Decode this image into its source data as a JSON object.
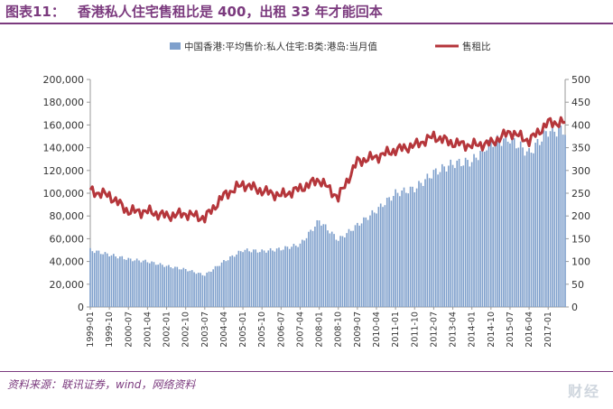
{
  "header": {
    "figure_label": "图表11：",
    "title": "香港私人住宅售租比是 400，出租 33 年才能回本"
  },
  "footer": {
    "source": "资料来源：联讯证券，wind，网络资料"
  },
  "colors": {
    "accent": "#7b3a7e",
    "bars": "#7fa0cc",
    "line": "#b5363b"
  },
  "chart_data": {
    "type": "bar",
    "x_label_period": "every 9 months",
    "x": [
      "1999-01",
      "1999-10",
      "2000-07",
      "2001-04",
      "2002-01",
      "2002-10",
      "2003-07",
      "2004-04",
      "2005-01",
      "2005-10",
      "2006-07",
      "2007-04",
      "2008-01",
      "2008-10",
      "2009-07",
      "2010-04",
      "2011-01",
      "2011-10",
      "2012-07",
      "2013-04",
      "2014-01",
      "2014-10",
      "2015-07",
      "2016-04",
      "2017-01"
    ],
    "series": [
      {
        "name": "中国香港:平均售价:私人住宅:B类:港岛:当月值",
        "type": "bar",
        "axis": "left",
        "points": [
          [
            "1999-01",
            50000
          ],
          [
            "1999-10",
            46000
          ],
          [
            "2000-07",
            42000
          ],
          [
            "2001-04",
            40000
          ],
          [
            "2002-01",
            36000
          ],
          [
            "2002-10",
            33000
          ],
          [
            "2003-07",
            28000
          ],
          [
            "2004-04",
            40000
          ],
          [
            "2005-01",
            50000
          ],
          [
            "2005-10",
            49000
          ],
          [
            "2006-07",
            51000
          ],
          [
            "2007-04",
            55000
          ],
          [
            "2008-01",
            76000
          ],
          [
            "2008-10",
            59000
          ],
          [
            "2009-07",
            72000
          ],
          [
            "2010-04",
            85000
          ],
          [
            "2011-01",
            100000
          ],
          [
            "2011-10",
            104000
          ],
          [
            "2012-07",
            118000
          ],
          [
            "2013-04",
            126000
          ],
          [
            "2014-01",
            128000
          ],
          [
            "2014-10",
            145000
          ],
          [
            "2015-07",
            148000
          ],
          [
            "2016-04",
            135000
          ],
          [
            "2017-01",
            155000
          ]
        ]
      },
      {
        "name": "售租比",
        "type": "line",
        "axis": "right",
        "points": [
          [
            "1999-01",
            255
          ],
          [
            "1999-10",
            245
          ],
          [
            "2000-07",
            210
          ],
          [
            "2001-04",
            210
          ],
          [
            "2002-01",
            200
          ],
          [
            "2002-10",
            205
          ],
          [
            "2003-07",
            195
          ],
          [
            "2004-04",
            245
          ],
          [
            "2005-01",
            270
          ],
          [
            "2005-10",
            255
          ],
          [
            "2006-07",
            245
          ],
          [
            "2007-04",
            260
          ],
          [
            "2008-01",
            280
          ],
          [
            "2008-10",
            240
          ],
          [
            "2009-07",
            320
          ],
          [
            "2010-04",
            330
          ],
          [
            "2011-01",
            345
          ],
          [
            "2011-10",
            355
          ],
          [
            "2012-07",
            375
          ],
          [
            "2013-04",
            360
          ],
          [
            "2014-01",
            355
          ],
          [
            "2014-10",
            360
          ],
          [
            "2015-07",
            385
          ],
          [
            "2016-04",
            365
          ],
          [
            "2017-01",
            405
          ]
        ]
      }
    ],
    "y_left": {
      "min": 0,
      "max": 200000,
      "step": 20000
    },
    "y_right": {
      "min": 0,
      "max": 500,
      "step": 50
    },
    "legend": {
      "position": "top",
      "entries": [
        "中国香港:平均售价:私人住宅:B类:港岛:当月值",
        "售租比"
      ]
    },
    "grid": false
  },
  "watermark": "财经"
}
